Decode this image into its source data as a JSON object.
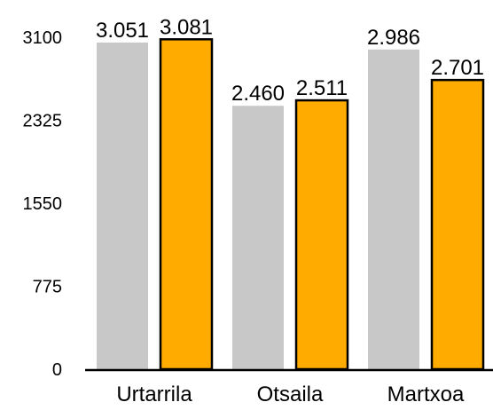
{
  "chart_data": {
    "type": "bar",
    "categories": [
      "Urtarrila",
      "Otsaila",
      "Martxoa"
    ],
    "series": [
      {
        "values": [
          3051,
          2460,
          2986
        ],
        "labels": [
          "3.051",
          "2.460",
          "2.986"
        ],
        "color": "#c8c8c8"
      },
      {
        "values": [
          3081,
          2511,
          2701
        ],
        "labels": [
          "3.081",
          "2.511",
          "2.701"
        ],
        "color": "#ffab00",
        "stroke": "#000000"
      }
    ],
    "yticks": [
      0,
      775,
      1550,
      2325,
      3100
    ],
    "ylim": [
      0,
      3100
    ],
    "grid": false,
    "legend": "none"
  }
}
